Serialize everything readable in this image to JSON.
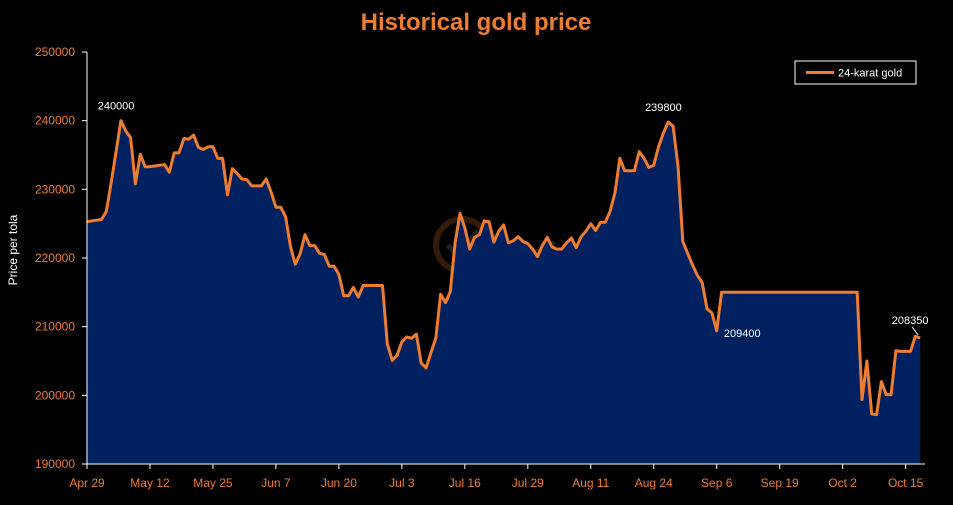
{
  "colors": {
    "background": "#000000",
    "accent": "#ED7D31",
    "area_fill": "#002060",
    "text": "#FFFFFF",
    "axis": "#FFFFFF"
  },
  "watermark": "Link News",
  "chart_data": {
    "type": "area",
    "title": "Historical gold price",
    "xlabel": "",
    "ylabel": "Price per tola",
    "ylim": [
      190000,
      250000
    ],
    "yticks": [
      190000,
      200000,
      210000,
      220000,
      230000,
      240000,
      250000
    ],
    "x_tick_labels": [
      "Apr 29",
      "May 12",
      "May 25",
      "Jun 7",
      "Jun 20",
      "Jul 3",
      "Jul 16",
      "Jul 29",
      "Aug 11",
      "Aug 24",
      "Sep 6",
      "Sep 19",
      "Oct 2",
      "Oct 15"
    ],
    "x_tick_days": [
      0,
      13,
      26,
      39,
      52,
      65,
      78,
      91,
      104,
      117,
      130,
      143,
      156,
      169
    ],
    "grid": false,
    "legend": "top-right",
    "series": [
      {
        "name": "24-karat gold",
        "color": "#ED7D31",
        "x": [
          0,
          2,
          3,
          4,
          5,
          6,
          7,
          8,
          9,
          10,
          11,
          12,
          13,
          14,
          15,
          16,
          17,
          18,
          19,
          20,
          21,
          22,
          23,
          24,
          25,
          26,
          27,
          28,
          29,
          30,
          31,
          32,
          33,
          34,
          35,
          36,
          37,
          38,
          39,
          40,
          41,
          42,
          43,
          44,
          45,
          46,
          47,
          48,
          49,
          50,
          51,
          52,
          53,
          54,
          55,
          56,
          57,
          58,
          59,
          60,
          61,
          62,
          63,
          64,
          65,
          66,
          67,
          68,
          69,
          70,
          71,
          72,
          73,
          74,
          75,
          76,
          77,
          78,
          79,
          80,
          81,
          82,
          83,
          84,
          85,
          86,
          87,
          88,
          89,
          90,
          91,
          92,
          93,
          94,
          95,
          96,
          97,
          98,
          99,
          100,
          101,
          102,
          103,
          104,
          105,
          106,
          107,
          108,
          109,
          110,
          111,
          112,
          113,
          114,
          115,
          116,
          117,
          118,
          119,
          120,
          121,
          122,
          123,
          124,
          125,
          126,
          127,
          128,
          129,
          130,
          131,
          132,
          133,
          134,
          135,
          136,
          137,
          138,
          139,
          140,
          141,
          142,
          143,
          144,
          145,
          146,
          147,
          148,
          149,
          150,
          151,
          152,
          153,
          154,
          155,
          156,
          157,
          158,
          159,
          160,
          161,
          162,
          163,
          164,
          165,
          166,
          167,
          168,
          169,
          170,
          171,
          172
        ],
        "values": [
          225300,
          225500,
          225600,
          226800,
          231000,
          235500,
          240000,
          238500,
          237500,
          230800,
          235100,
          233300,
          233300,
          233400,
          233500,
          233600,
          232500,
          235300,
          235300,
          237400,
          237300,
          237900,
          236100,
          235800,
          236200,
          236200,
          234500,
          234500,
          229200,
          233000,
          232300,
          231500,
          231400,
          230500,
          230500,
          230500,
          231500,
          229600,
          227400,
          227400,
          226000,
          221700,
          219100,
          220600,
          223400,
          221800,
          221800,
          220700,
          220500,
          218800,
          218800,
          217600,
          214500,
          214500,
          215700,
          214300,
          216000,
          216000,
          216000,
          216000,
          216000,
          207500,
          205100,
          205800,
          207800,
          208500,
          208300,
          208900,
          204700,
          204000,
          206200,
          208300,
          214700,
          213500,
          215100,
          222200,
          226500,
          224400,
          221300,
          223000,
          223400,
          225400,
          225300,
          222300,
          223900,
          224800,
          222200,
          222500,
          223100,
          222400,
          222100,
          221300,
          220200,
          221800,
          223000,
          221600,
          221300,
          221300,
          222200,
          222900,
          221500,
          223100,
          223900,
          225000,
          224000,
          225200,
          225200,
          226800,
          229500,
          234500,
          232700,
          232700,
          232700,
          235500,
          234500,
          233200,
          233500,
          236200,
          238200,
          239800,
          239200,
          233400,
          222400,
          220700,
          219000,
          217500,
          216400,
          212600,
          212000,
          209400,
          215000,
          215000,
          215000,
          215000,
          215000,
          215000,
          215000,
          215000,
          215000,
          215000,
          215000,
          215000,
          215000,
          215000,
          215000,
          215000,
          215000,
          215000,
          215000,
          215000,
          215000,
          215000,
          215000,
          215000,
          215000,
          215000,
          215000,
          215000,
          215000,
          199400,
          205000,
          197300,
          197200,
          202000,
          200100,
          200100,
          206500,
          206400,
          206400,
          206400,
          208600,
          208350
        ]
      }
    ],
    "annotations": [
      {
        "label": "240000",
        "x": 6,
        "y": 240000
      },
      {
        "label": "239800",
        "x": 119,
        "y": 239800
      },
      {
        "label": "209400",
        "x": 129,
        "y": 209400
      },
      {
        "label": "208350",
        "x": 172,
        "y": 208350
      }
    ]
  }
}
